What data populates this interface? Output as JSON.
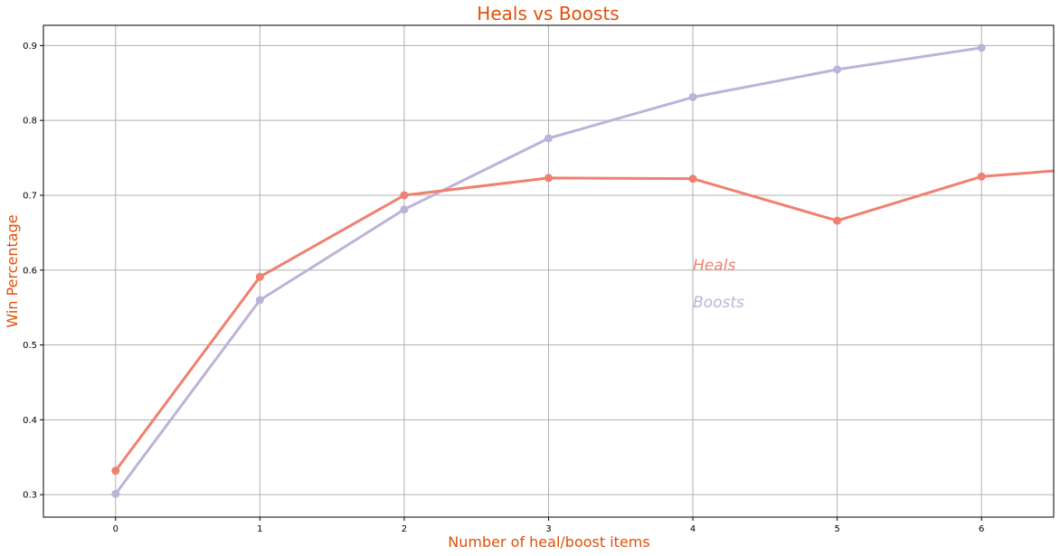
{
  "chart_data": {
    "type": "line",
    "title": "Heals vs Boosts",
    "xlabel": "Number of heal/boost items",
    "ylabel": "Win Percentage",
    "xlim": [
      -0.5,
      6.5
    ],
    "ylim": [
      0.27,
      0.927
    ],
    "x_ticks": [
      0,
      1,
      2,
      3,
      4,
      5,
      6
    ],
    "x_tick_labels": [
      "0",
      "1",
      "2",
      "3",
      "4",
      "5",
      "6"
    ],
    "y_ticks": [
      0.3,
      0.4,
      0.5,
      0.6,
      0.7,
      0.8,
      0.9
    ],
    "y_tick_labels": [
      "0.3",
      "0.4",
      "0.5",
      "0.6",
      "0.7",
      "0.8",
      "0.9"
    ],
    "grid": true,
    "series": [
      {
        "name": "Heals",
        "color": "#f08070",
        "x": [
          0,
          1,
          2,
          3,
          4,
          5,
          6,
          7
        ],
        "values": [
          0.332,
          0.591,
          0.7,
          0.723,
          0.722,
          0.666,
          0.725,
          0.74
        ]
      },
      {
        "name": "Boosts",
        "color": "#bcb4d8",
        "x": [
          0,
          1,
          2,
          3,
          4,
          5,
          6
        ],
        "values": [
          0.301,
          0.56,
          0.681,
          0.776,
          0.831,
          0.868,
          0.897
        ]
      }
    ],
    "annotations": [
      {
        "text": "Heals",
        "x": 4,
        "y": 0.6,
        "color": "#f08070"
      },
      {
        "text": "Boosts",
        "x": 4,
        "y": 0.55,
        "color": "#bcb4d8"
      }
    ],
    "title_color": "#e0500a"
  }
}
